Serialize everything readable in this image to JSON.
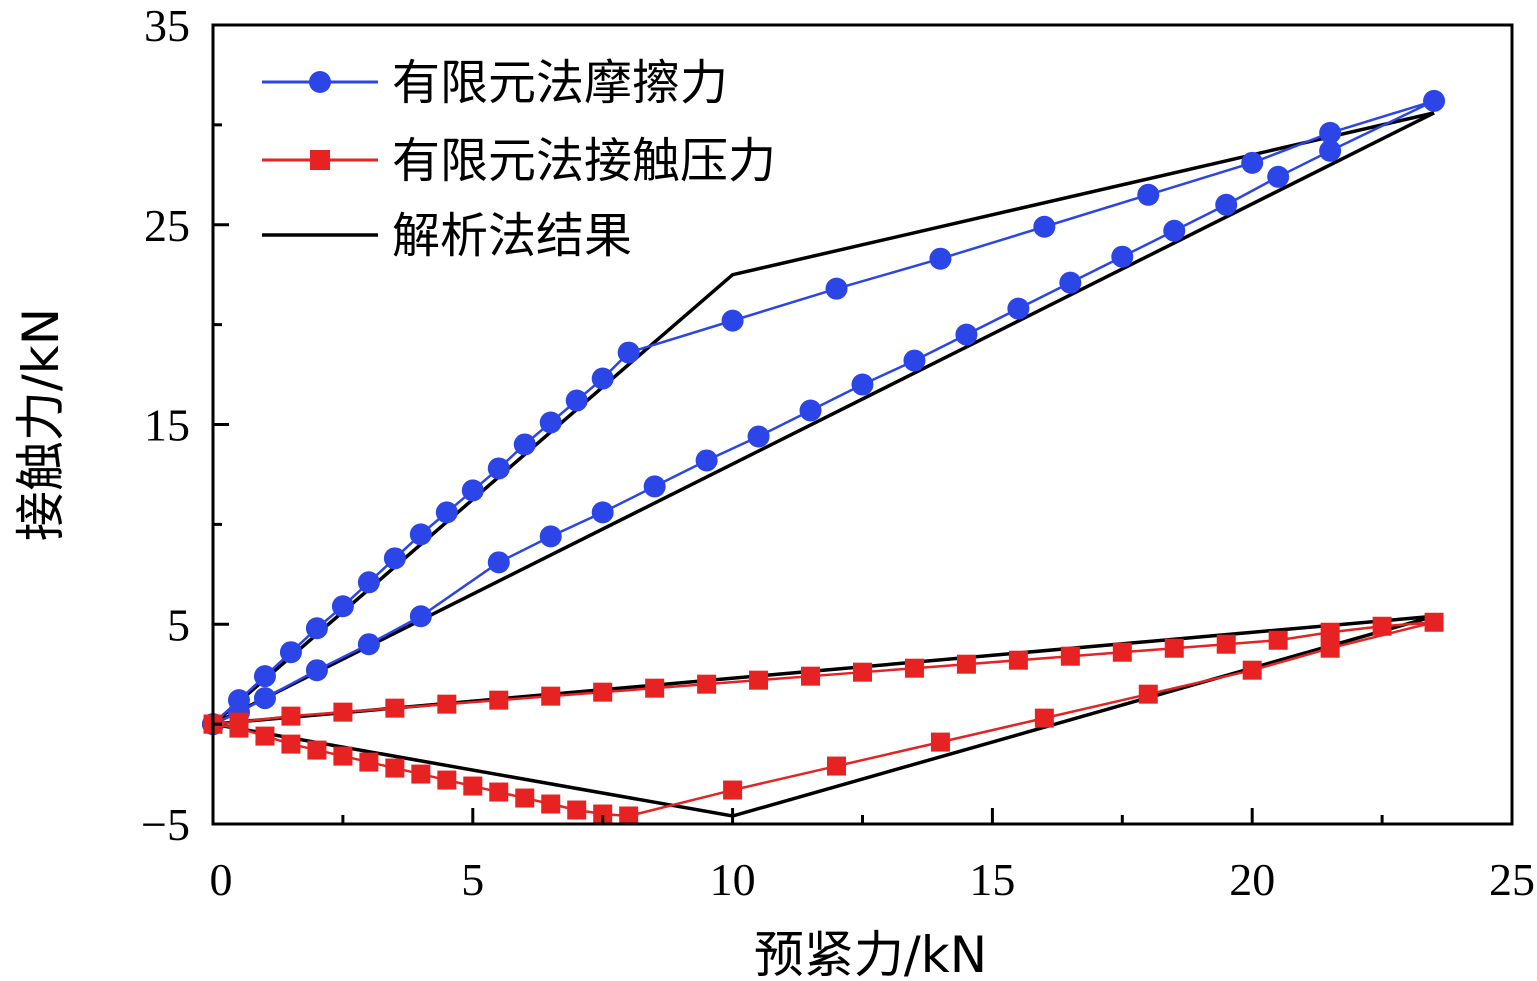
{
  "chart_data": {
    "type": "line",
    "xlabel": "预紧力/kN",
    "ylabel": "接触力/kN",
    "xlim": [
      0,
      25
    ],
    "ylim": [
      -5,
      35
    ],
    "xticks": [
      0,
      5,
      10,
      15,
      20,
      25
    ],
    "yticks": [
      -5,
      5,
      15,
      25,
      35
    ],
    "grid": false,
    "legend_position": "top-left",
    "colors": {
      "friction": "#2b45e6",
      "pressure": "#e62222",
      "analytic": "#000000"
    },
    "series": [
      {
        "name": "有限元法摩擦力",
        "marker": "circle",
        "color": "#2b45e6",
        "x": [
          0,
          0.5,
          1,
          1.5,
          2,
          2.5,
          3,
          3.5,
          4,
          4.5,
          5,
          5.5,
          6,
          6.5,
          7,
          7.5,
          8,
          10,
          12,
          14,
          16,
          18,
          20,
          21.5,
          23.5,
          21.5,
          20.5,
          19.5,
          18.5,
          17.5,
          16.5,
          15.5,
          14.5,
          13.5,
          12.5,
          11.5,
          10.5,
          9.5,
          8.5,
          7.5,
          6.5,
          5.5,
          4,
          3,
          2,
          1,
          0.5,
          0
        ],
        "y": [
          0,
          1.2,
          2.4,
          3.6,
          4.8,
          5.9,
          7.1,
          8.3,
          9.5,
          10.6,
          11.7,
          12.8,
          14,
          15.1,
          16.2,
          17.3,
          18.6,
          20.2,
          21.8,
          23.3,
          24.9,
          26.5,
          28.1,
          29.6,
          31.2,
          28.7,
          27.4,
          26,
          24.7,
          23.4,
          22.1,
          20.8,
          19.5,
          18.2,
          17,
          15.7,
          14.4,
          13.2,
          11.9,
          10.6,
          9.4,
          8.1,
          5.4,
          4,
          2.7,
          1.3,
          0.6,
          0
        ]
      },
      {
        "name": "有限元法接触压力",
        "marker": "square",
        "color": "#e62222",
        "x": [
          0,
          0.5,
          1,
          1.5,
          2,
          2.5,
          3,
          3.5,
          4,
          4.5,
          5,
          5.5,
          6,
          6.5,
          7,
          7.5,
          8,
          10,
          12,
          14,
          16,
          18,
          20,
          21.5,
          23.5,
          22.5,
          21.5,
          20.5,
          19.5,
          18.5,
          17.5,
          16.5,
          15.5,
          14.5,
          13.5,
          12.5,
          11.5,
          10.5,
          9.5,
          8.5,
          7.5,
          6.5,
          5.5,
          4.5,
          3.5,
          2.5,
          1.5,
          0.5,
          0
        ],
        "y": [
          0,
          -0.2,
          -0.6,
          -1,
          -1.3,
          -1.6,
          -1.9,
          -2.2,
          -2.5,
          -2.8,
          -3.1,
          -3.4,
          -3.7,
          -4,
          -4.3,
          -4.5,
          -4.6,
          -3.3,
          -2.1,
          -0.9,
          0.3,
          1.5,
          2.7,
          3.8,
          5.1,
          4.9,
          4.6,
          4.2,
          4,
          3.8,
          3.6,
          3.4,
          3.2,
          3,
          2.8,
          2.6,
          2.4,
          2.2,
          2,
          1.8,
          1.6,
          1.4,
          1.2,
          1,
          0.8,
          0.6,
          0.4,
          0.1,
          0
        ]
      },
      {
        "name": "解析法结果",
        "marker": "none",
        "color": "#000000",
        "segments": [
          {
            "x": [
              0,
              10,
              23.5
            ],
            "y": [
              0,
              22.5,
              30.6
            ]
          },
          {
            "x": [
              0,
              23.5
            ],
            "y": [
              0,
              30.6
            ]
          },
          {
            "x": [
              0,
              23.5
            ],
            "y": [
              0,
              5.4
            ]
          },
          {
            "x": [
              0,
              10,
              23.5
            ],
            "y": [
              0,
              -4.6,
              5.4
            ]
          }
        ]
      }
    ]
  }
}
